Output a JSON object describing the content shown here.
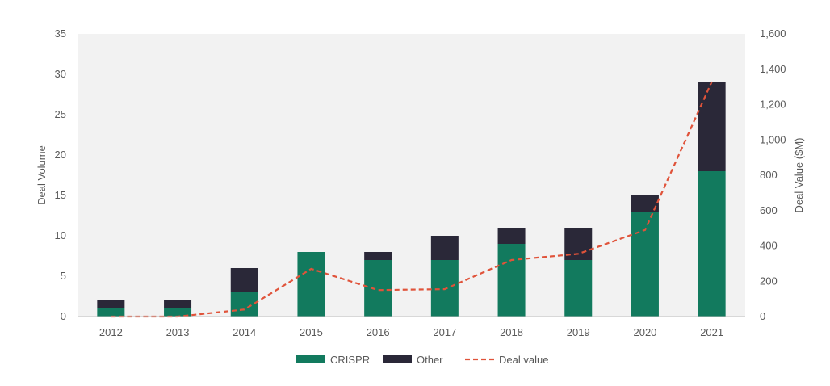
{
  "chart_data": {
    "type": "bar",
    "stacked": true,
    "categories": [
      "2012",
      "2013",
      "2014",
      "2015",
      "2016",
      "2017",
      "2018",
      "2019",
      "2020",
      "2021"
    ],
    "series": [
      {
        "name": "CRISPR",
        "type": "bar",
        "axis": "left",
        "color": "#127a5e",
        "values": [
          1,
          1,
          3,
          8,
          7,
          7,
          9,
          7,
          13,
          18
        ]
      },
      {
        "name": "Other",
        "type": "bar",
        "axis": "left",
        "color": "#2a2838",
        "values": [
          1,
          1,
          3,
          0,
          1,
          3,
          2,
          4,
          2,
          11
        ]
      },
      {
        "name": "Deal value",
        "type": "line",
        "style": "dashed",
        "axis": "right",
        "color": "#e0533a",
        "values": [
          0,
          0,
          40,
          270,
          150,
          155,
          320,
          355,
          490,
          1330
        ]
      }
    ],
    "ylabel": "Deal Volume",
    "ylim": [
      0,
      35
    ],
    "yticks": [
      "0",
      "5",
      "10",
      "15",
      "20",
      "25",
      "30",
      "35"
    ],
    "y2label": "Deal Value ($M)",
    "y2lim": [
      0,
      1600
    ],
    "y2ticks": [
      "0",
      "200",
      "400",
      "600",
      "800",
      "1,000",
      "1,200",
      "1,400",
      "1,600"
    ],
    "legend_position": "bottom",
    "plot_background": "#f2f2f2",
    "grid": false
  }
}
